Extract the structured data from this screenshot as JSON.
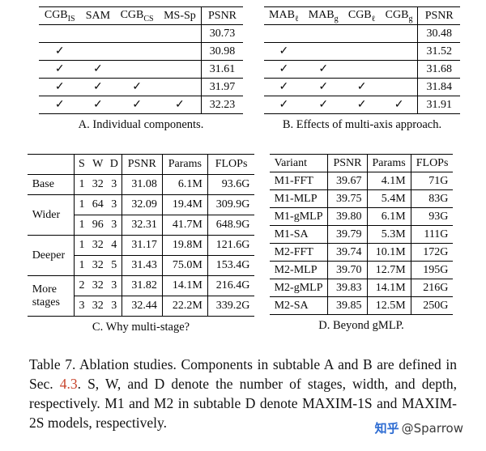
{
  "symbols": {
    "check": "✓"
  },
  "tableA": {
    "headers": [
      {
        "base": "CGB",
        "sub": "IS"
      },
      {
        "base": "SAM",
        "sub": ""
      },
      {
        "base": "CGB",
        "sub": "CS"
      },
      {
        "base": "MS-Sp",
        "sub": ""
      },
      {
        "base": "PSNR",
        "sub": ""
      }
    ],
    "rows": [
      {
        "checks": [
          false,
          false,
          false,
          false
        ],
        "psnr": "30.73"
      },
      {
        "checks": [
          true,
          false,
          false,
          false
        ],
        "psnr": "30.98"
      },
      {
        "checks": [
          true,
          true,
          false,
          false
        ],
        "psnr": "31.61"
      },
      {
        "checks": [
          true,
          true,
          true,
          false
        ],
        "psnr": "31.97"
      },
      {
        "checks": [
          true,
          true,
          true,
          true
        ],
        "psnr": "32.23"
      }
    ],
    "caption": "A. Individual components."
  },
  "tableB": {
    "headers": [
      {
        "base": "MAB",
        "sub": "ℓ"
      },
      {
        "base": "MAB",
        "sub": "g"
      },
      {
        "base": "CGB",
        "sub": "ℓ"
      },
      {
        "base": "CGB",
        "sub": "g"
      },
      {
        "base": "PSNR",
        "sub": ""
      }
    ],
    "rows": [
      {
        "checks": [
          false,
          false,
          false,
          false
        ],
        "psnr": "30.48"
      },
      {
        "checks": [
          true,
          false,
          false,
          false
        ],
        "psnr": "31.52"
      },
      {
        "checks": [
          true,
          true,
          false,
          false
        ],
        "psnr": "31.68"
      },
      {
        "checks": [
          true,
          true,
          true,
          false
        ],
        "psnr": "31.84"
      },
      {
        "checks": [
          true,
          true,
          true,
          true
        ],
        "psnr": "31.91"
      }
    ],
    "caption": "B. Effects of multi-axis approach."
  },
  "tableC": {
    "headers": [
      "",
      "S",
      "W",
      "D",
      "PSNR",
      "Params",
      "FLOPs"
    ],
    "groups": [
      {
        "label": "Base",
        "rows": [
          [
            "1",
            "32",
            "3",
            "31.08",
            "6.1M",
            "93.6G"
          ]
        ]
      },
      {
        "label": "Wider",
        "rows": [
          [
            "1",
            "64",
            "3",
            "32.09",
            "19.4M",
            "309.9G"
          ],
          [
            "1",
            "96",
            "3",
            "32.31",
            "41.7M",
            "648.9G"
          ]
        ]
      },
      {
        "label": "Deeper",
        "rows": [
          [
            "1",
            "32",
            "4",
            "31.17",
            "19.8M",
            "121.6G"
          ],
          [
            "1",
            "32",
            "5",
            "31.43",
            "75.0M",
            "153.4G"
          ]
        ]
      },
      {
        "label": "More stages",
        "rows": [
          [
            "2",
            "32",
            "3",
            "31.82",
            "14.1M",
            "216.4G"
          ],
          [
            "3",
            "32",
            "3",
            "32.44",
            "22.2M",
            "339.2G"
          ]
        ]
      }
    ],
    "caption": "C. Why multi-stage?"
  },
  "tableD": {
    "headers": [
      "Variant",
      "PSNR",
      "Params",
      "FLOPs"
    ],
    "groups": [
      {
        "rows": [
          [
            "M1-FFT",
            "39.67",
            "4.1M",
            "71G"
          ],
          [
            "M1-MLP",
            "39.75",
            "5.4M",
            "83G"
          ],
          [
            "M1-gMLP",
            "39.80",
            "6.1M",
            "93G"
          ],
          [
            "M1-SA",
            "39.79",
            "5.3M",
            "111G"
          ]
        ]
      },
      {
        "rows": [
          [
            "M2-FFT",
            "39.74",
            "10.1M",
            "172G"
          ],
          [
            "M2-MLP",
            "39.70",
            "12.7M",
            "195G"
          ],
          [
            "M2-gMLP",
            "39.83",
            "14.1M",
            "216G"
          ],
          [
            "M2-SA",
            "39.85",
            "12.5M",
            "250G"
          ]
        ]
      }
    ],
    "caption": "D. Beyond gMLP."
  },
  "caption": {
    "part1": "Table 7. Ablation studies. Components in subtable A and B are defined in Sec. ",
    "link": "4.3",
    "part2": ". S, W, and D denote the number of stages, width, and depth, respectively. M1 and M2 in subtable D denote MAXIM-1S and MAXIM-2S models, respectively.",
    "link_color": "#c8442c",
    "text_color": "#111111"
  },
  "watermark": {
    "brand": "知乎",
    "user": "@Sparrow",
    "brand_color": "#2c6bd2",
    "user_color": "#3a3a3a"
  }
}
